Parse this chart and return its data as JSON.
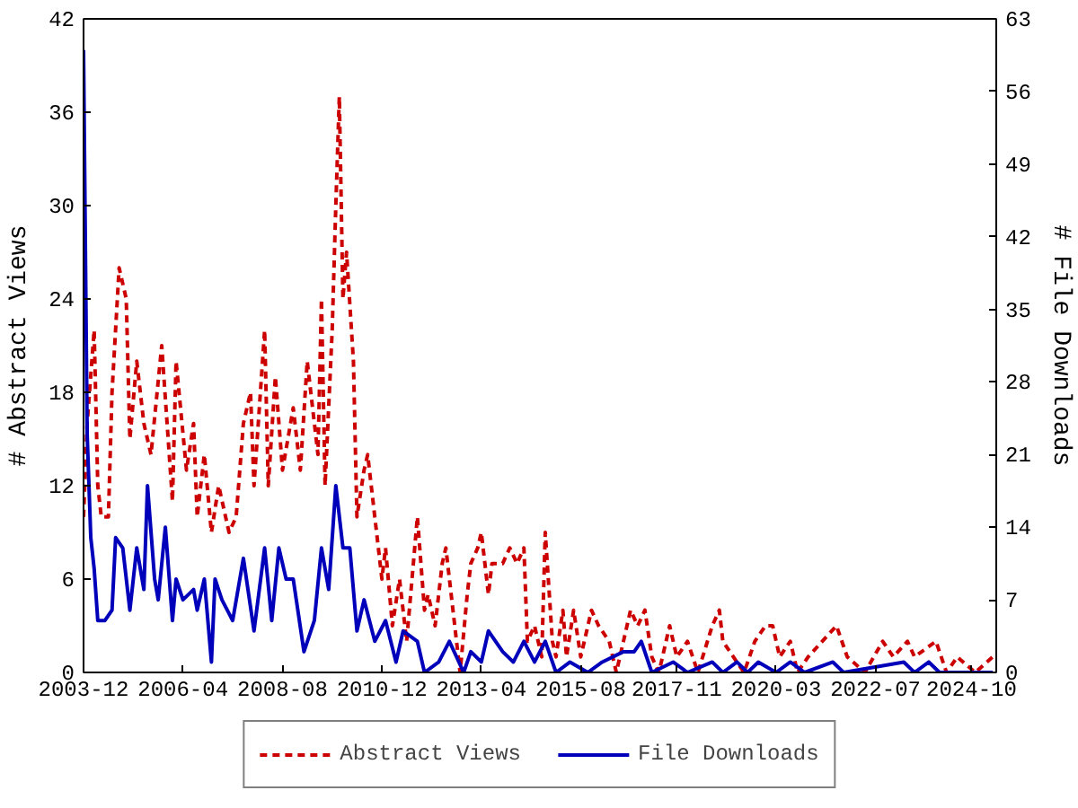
{
  "chart_data": {
    "type": "line",
    "ylabel": "# Abstract Views",
    "y2label": "# File Downloads",
    "xlim": [
      "2003-12",
      "2025-05"
    ],
    "xticks": [
      "2003-12",
      "2006-04",
      "2008-08",
      "2010-12",
      "2013-04",
      "2015-08",
      "2017-11",
      "2020-03",
      "2022-07",
      "2024-10"
    ],
    "ylim": [
      0,
      42
    ],
    "yticks": [
      0,
      6,
      12,
      18,
      24,
      30,
      36,
      42
    ],
    "y2lim": [
      0,
      63
    ],
    "y2ticks": [
      0,
      7,
      14,
      21,
      28,
      35,
      42,
      49,
      56,
      63
    ],
    "grid": false,
    "legend": "bottom",
    "marker": "none",
    "series": [
      {
        "name": "Abstract Views",
        "color": "#cc0000",
        "line_style": "dashed",
        "axis": "y",
        "x": [
          "2003-12",
          "2004-01",
          "2004-03",
          "2004-04",
          "2004-05",
          "2004-07",
          "2004-08",
          "2004-10",
          "2004-12",
          "2005-01",
          "2005-03",
          "2005-05",
          "2005-07",
          "2005-10",
          "2006-01",
          "2006-02",
          "2006-05",
          "2006-07",
          "2006-08",
          "2006-10",
          "2006-12",
          "2007-02",
          "2007-05",
          "2007-07",
          "2007-09",
          "2007-11",
          "2007-12",
          "2008-03",
          "2008-04",
          "2008-06",
          "2008-08",
          "2008-11",
          "2009-01",
          "2009-03",
          "2009-06",
          "2009-07",
          "2009-08",
          "2009-10",
          "2009-11",
          "2009-12",
          "2010-01",
          "2010-02",
          "2010-04",
          "2010-05",
          "2010-07",
          "2010-08",
          "2010-10",
          "2010-12",
          "2011-01",
          "2011-03",
          "2011-05",
          "2011-07",
          "2011-10",
          "2011-12",
          "2012-01",
          "2012-03",
          "2012-05",
          "2012-06",
          "2012-08",
          "2012-10",
          "2012-12",
          "2013-01",
          "2013-03",
          "2013-04",
          "2013-06",
          "2013-07",
          "2013-10",
          "2013-12",
          "2014-02",
          "2014-04",
          "2014-05",
          "2014-07",
          "2014-09",
          "2014-10",
          "2014-12",
          "2015-01",
          "2015-03",
          "2015-04",
          "2015-06",
          "2015-08",
          "2015-11",
          "2016-01",
          "2016-04",
          "2016-06",
          "2016-08",
          "2016-10",
          "2016-12",
          "2017-02",
          "2017-04",
          "2017-06",
          "2017-09",
          "2017-11",
          "2018-02",
          "2018-05",
          "2018-09",
          "2018-11",
          "2018-12",
          "2019-03",
          "2019-06",
          "2019-09",
          "2019-12",
          "2020-02",
          "2020-04",
          "2020-07",
          "2020-09",
          "2020-12",
          "2021-04",
          "2021-08",
          "2021-11",
          "2022-04",
          "2022-09",
          "2022-12",
          "2023-04",
          "2023-06",
          "2023-12",
          "2024-03",
          "2024-06",
          "2024-11",
          "2025-04"
        ],
        "values": [
          10,
          16,
          22,
          12,
          10,
          10,
          18,
          26,
          24,
          15,
          20,
          16,
          14,
          21,
          11,
          20,
          13,
          16,
          10,
          14,
          9,
          12,
          9,
          10,
          16,
          18,
          12,
          22,
          12,
          19,
          13,
          17,
          13,
          20,
          14,
          24,
          12,
          22,
          30,
          37,
          24,
          27,
          20,
          10,
          13,
          14,
          10,
          6,
          8,
          3,
          6,
          2,
          10,
          4,
          5,
          3,
          7,
          8,
          4,
          0,
          5,
          7,
          8,
          9,
          5,
          7,
          7,
          8,
          7,
          8,
          2,
          3,
          1,
          9,
          2,
          1,
          4,
          1,
          4,
          1,
          4,
          3,
          2,
          0,
          2,
          4,
          3,
          4,
          1,
          0,
          3,
          1,
          2,
          0,
          3,
          4,
          2,
          1,
          0,
          2,
          3,
          3,
          1,
          2,
          0,
          1,
          2,
          3,
          1,
          0,
          2,
          1,
          2,
          1,
          2,
          0,
          1,
          0,
          1
        ]
      },
      {
        "name": "File Downloads",
        "color": "#0000bb",
        "line_style": "solid",
        "axis": "y2",
        "x": [
          "2003-12",
          "2004-01",
          "2004-02",
          "2004-03",
          "2004-04",
          "2004-06",
          "2004-08",
          "2004-09",
          "2004-11",
          "2005-01",
          "2005-03",
          "2005-05",
          "2005-06",
          "2005-08",
          "2005-09",
          "2005-11",
          "2006-01",
          "2006-02",
          "2006-04",
          "2006-07",
          "2006-08",
          "2006-10",
          "2006-12",
          "2007-01",
          "2007-03",
          "2007-06",
          "2007-09",
          "2007-12",
          "2008-03",
          "2008-05",
          "2008-07",
          "2008-09",
          "2008-11",
          "2009-02",
          "2009-05",
          "2009-07",
          "2009-09",
          "2009-11",
          "2010-01",
          "2010-03",
          "2010-05",
          "2010-07",
          "2010-10",
          "2011-01",
          "2011-04",
          "2011-06",
          "2011-10",
          "2011-12",
          "2012-04",
          "2012-07",
          "2012-11",
          "2013-01",
          "2013-04",
          "2013-06",
          "2013-10",
          "2014-01",
          "2014-04",
          "2014-07",
          "2014-10",
          "2015-01",
          "2015-05",
          "2015-10",
          "2016-02",
          "2016-08",
          "2016-11",
          "2017-01",
          "2017-04",
          "2017-10",
          "2018-02",
          "2018-09",
          "2018-12",
          "2019-04",
          "2019-07",
          "2019-10",
          "2020-03",
          "2020-07",
          "2020-11",
          "2021-07",
          "2021-10",
          "2023-03",
          "2023-06",
          "2023-10",
          "2024-01",
          "2025-04"
        ],
        "values": [
          60,
          23,
          13,
          10,
          5,
          5,
          6,
          13,
          12,
          6,
          12,
          8,
          18,
          9,
          7,
          14,
          5,
          9,
          7,
          8,
          6,
          9,
          1,
          9,
          7,
          5,
          11,
          4,
          12,
          5,
          12,
          9,
          9,
          2,
          5,
          12,
          8,
          18,
          12,
          12,
          4,
          7,
          3,
          5,
          1,
          4,
          3,
          0,
          1,
          3,
          0,
          2,
          1,
          4,
          2,
          1,
          3,
          1,
          3,
          0,
          1,
          0,
          1,
          2,
          2,
          3,
          0,
          1,
          0,
          1,
          0,
          1,
          0,
          1,
          0,
          1,
          0,
          1,
          0,
          1,
          0,
          1,
          0,
          0
        ]
      }
    ]
  }
}
